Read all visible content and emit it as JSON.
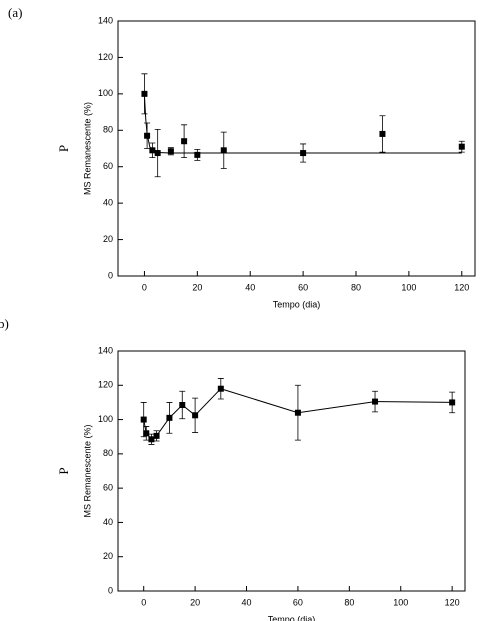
{
  "chart_data": [
    {
      "type": "scatter",
      "panel_label": "(a)",
      "side_label": "P",
      "y_label": "MS Remanescente (%)",
      "x_label": "Tempo (dia)",
      "xlim": [
        -10,
        125
      ],
      "ylim": [
        0,
        140
      ],
      "xticks": [
        0,
        20,
        40,
        60,
        80,
        100,
        120
      ],
      "yticks": [
        0,
        20,
        40,
        60,
        80,
        100,
        120,
        140
      ],
      "series": [
        {
          "color": "#000000",
          "marker": "square",
          "line": false,
          "x": [
            0,
            1,
            3,
            5,
            10,
            15,
            20,
            30,
            60,
            90,
            120
          ],
          "values": [
            100,
            77,
            69,
            67.5,
            68.5,
            74,
            66.5,
            69,
            67.5,
            78,
            71
          ],
          "errors": [
            11,
            7,
            4,
            13,
            2,
            9,
            3,
            10,
            5,
            10,
            3
          ]
        },
        {
          "color": "#000000",
          "marker": "none",
          "line": true,
          "x": [
            0,
            0.5,
            1,
            2,
            3,
            5,
            10,
            120
          ],
          "values": [
            99,
            86,
            78,
            71,
            69,
            67.8,
            67.5,
            67.5
          ]
        }
      ]
    },
    {
      "type": "scatter",
      "panel_label": "b)",
      "side_label": "P",
      "y_label": "MS Remanescente (%)",
      "x_label": "Tempo (dia)",
      "xlim": [
        -10,
        125
      ],
      "ylim": [
        0,
        140
      ],
      "xticks": [
        0,
        20,
        40,
        60,
        80,
        100,
        120
      ],
      "yticks": [
        0,
        20,
        40,
        60,
        80,
        100,
        120,
        140
      ],
      "series": [
        {
          "color": "#000000",
          "marker": "square",
          "line": true,
          "x": [
            0,
            1,
            3,
            5,
            10,
            15,
            20,
            30,
            60,
            90,
            120
          ],
          "values": [
            100,
            92,
            88.5,
            90.5,
            101,
            108.5,
            102.5,
            118,
            104,
            110.5,
            110
          ],
          "errors": [
            10,
            4,
            3,
            3,
            9,
            8,
            10,
            6,
            16,
            6,
            6
          ]
        }
      ]
    }
  ]
}
